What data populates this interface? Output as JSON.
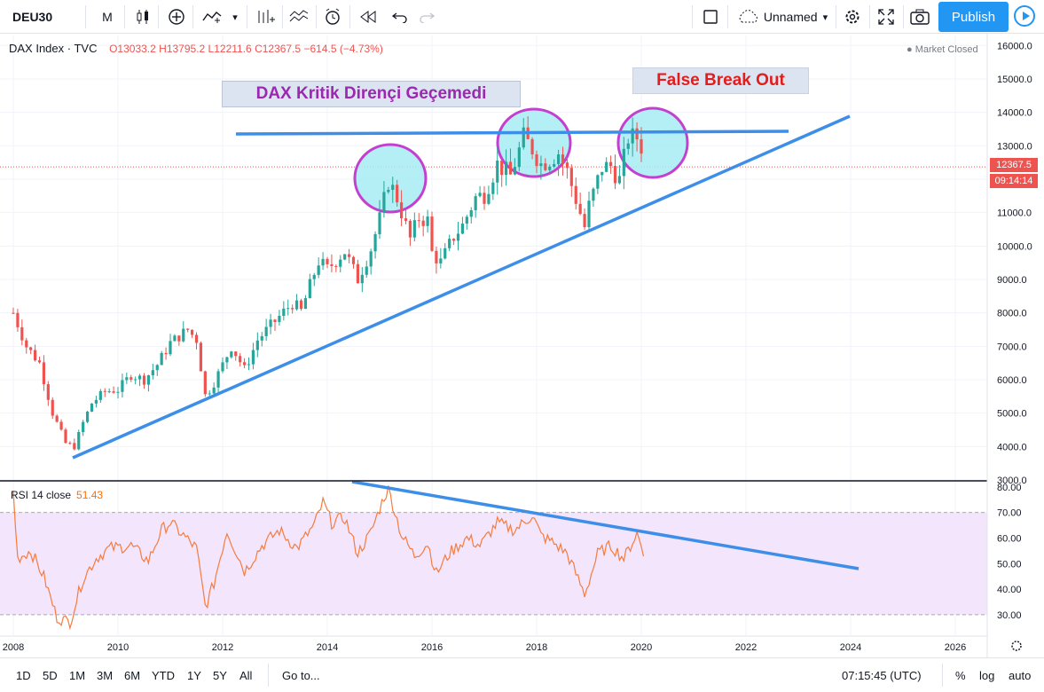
{
  "toolbar": {
    "symbol": "DEU30",
    "interval": "M",
    "layout_name": "Unnamed",
    "publish_label": "Publish"
  },
  "legend": {
    "name": "DAX Index · TVC",
    "open": "O13033.2",
    "high": "H13795.2",
    "low": "L12211.6",
    "close": "C12367.5",
    "change": "−614.5 (−4.73%)"
  },
  "market_status": "● Market Closed",
  "price_tag": {
    "price": "12367.5",
    "countdown": "09:14:14"
  },
  "rsi": {
    "label": "RSI 14 close",
    "value": "51.43"
  },
  "annotations": {
    "resistance_note": "DAX Kritik Dirençi Geçemedi",
    "breakout_note": "False Break Out"
  },
  "bottom": {
    "ranges": [
      "1D",
      "5D",
      "1M",
      "3M",
      "6M",
      "YTD",
      "1Y",
      "5Y",
      "All"
    ],
    "goto": "Go to...",
    "clock": "07:15:45 (UTC)",
    "percent": "%",
    "log": "log",
    "auto": "auto"
  },
  "colors": {
    "up": "#26a69a",
    "down": "#ef5350",
    "trendline": "#3c8ee8",
    "rsi": "#f57c3f",
    "rsi_band": "#f3e5fb",
    "circle_fill": "#a6ecf3",
    "circle_stroke": "#c43fd0"
  },
  "chart_data": {
    "type": "candlestick",
    "interval": "monthly",
    "price_axis": {
      "ylim": [
        3000,
        16300
      ],
      "ticks": [
        3000,
        4000,
        5000,
        6000,
        7000,
        8000,
        9000,
        10000,
        11000,
        12000,
        13000,
        14000,
        15000,
        16000
      ]
    },
    "time_axis": {
      "xlim": [
        2008.0,
        2027.2
      ],
      "ticks": [
        "2008",
        "2010",
        "2012",
        "2014",
        "2016",
        "2018",
        "2020",
        "2022",
        "2024",
        "2026"
      ]
    },
    "last_price": 12367.5,
    "closes": [
      [
        2008.0,
        8000
      ],
      [
        2008.25,
        7000
      ],
      [
        2008.5,
        6500
      ],
      [
        2008.75,
        5000
      ],
      [
        2009.0,
        4100
      ],
      [
        2009.17,
        4000
      ],
      [
        2009.33,
        4700
      ],
      [
        2009.5,
        5300
      ],
      [
        2009.75,
        5650
      ],
      [
        2010.0,
        5700
      ],
      [
        2010.25,
        6150
      ],
      [
        2010.5,
        6000
      ],
      [
        2010.75,
        6450
      ],
      [
        2011.0,
        7100
      ],
      [
        2011.33,
        7500
      ],
      [
        2011.5,
        7200
      ],
      [
        2011.67,
        5500
      ],
      [
        2011.83,
        5900
      ],
      [
        2012.0,
        6450
      ],
      [
        2012.17,
        7000
      ],
      [
        2012.42,
        6300
      ],
      [
        2012.67,
        7200
      ],
      [
        2013.0,
        7750
      ],
      [
        2013.33,
        8300
      ],
      [
        2013.5,
        8050
      ],
      [
        2013.83,
        9550
      ],
      [
        2014.0,
        9300
      ],
      [
        2014.33,
        9850
      ],
      [
        2014.58,
        9000
      ],
      [
        2014.83,
        9900
      ],
      [
        2015.0,
        10800
      ],
      [
        2015.17,
        11950
      ],
      [
        2015.33,
        11450
      ],
      [
        2015.58,
        10200
      ],
      [
        2015.75,
        10850
      ],
      [
        2015.92,
        10750
      ],
      [
        2016.0,
        9800
      ],
      [
        2016.17,
        9500
      ],
      [
        2016.42,
        10300
      ],
      [
        2016.58,
        10600
      ],
      [
        2016.83,
        11450
      ],
      [
        2017.0,
        11550
      ],
      [
        2017.25,
        12450
      ],
      [
        2017.5,
        12100
      ],
      [
        2017.75,
        13250
      ],
      [
        2017.92,
        12900
      ],
      [
        2018.08,
        12450
      ],
      [
        2018.25,
        12600
      ],
      [
        2018.42,
        12800
      ],
      [
        2018.58,
        12250
      ],
      [
        2018.75,
        11400
      ],
      [
        2018.92,
        10550
      ],
      [
        2019.0,
        11200
      ],
      [
        2019.25,
        12350
      ],
      [
        2019.42,
        12400
      ],
      [
        2019.58,
        11950
      ],
      [
        2019.75,
        13250
      ],
      [
        2019.92,
        13250
      ],
      [
        2020.0,
        12980
      ],
      [
        2020.08,
        12367.5
      ]
    ],
    "series": [
      {
        "name": "RSI 14 close",
        "ylim": [
          22,
          82
        ],
        "ticks": [
          30,
          40,
          50,
          60,
          70,
          80
        ],
        "band": [
          30,
          70
        ],
        "values": [
          [
            2008.0,
            78
          ],
          [
            2008.08,
            52
          ],
          [
            2008.33,
            55
          ],
          [
            2008.58,
            45
          ],
          [
            2008.83,
            29
          ],
          [
            2009.08,
            27
          ],
          [
            2009.33,
            44
          ],
          [
            2009.58,
            52
          ],
          [
            2009.83,
            56
          ],
          [
            2010.25,
            57
          ],
          [
            2010.58,
            51
          ],
          [
            2010.83,
            63
          ],
          [
            2011.0,
            66
          ],
          [
            2011.25,
            61
          ],
          [
            2011.5,
            56
          ],
          [
            2011.67,
            33
          ],
          [
            2011.83,
            42
          ],
          [
            2012.08,
            63
          ],
          [
            2012.42,
            47
          ],
          [
            2012.75,
            57
          ],
          [
            2013.08,
            63
          ],
          [
            2013.42,
            56
          ],
          [
            2013.75,
            65
          ],
          [
            2013.92,
            74
          ],
          [
            2014.08,
            66
          ],
          [
            2014.33,
            68
          ],
          [
            2014.58,
            54
          ],
          [
            2014.83,
            62
          ],
          [
            2015.08,
            76
          ],
          [
            2015.17,
            79
          ],
          [
            2015.42,
            61
          ],
          [
            2015.67,
            53
          ],
          [
            2015.92,
            58
          ],
          [
            2016.08,
            46
          ],
          [
            2016.33,
            54
          ],
          [
            2016.67,
            60
          ],
          [
            2016.92,
            57
          ],
          [
            2017.25,
            66
          ],
          [
            2017.58,
            63
          ],
          [
            2017.92,
            69
          ],
          [
            2018.08,
            61
          ],
          [
            2018.33,
            58
          ],
          [
            2018.58,
            54
          ],
          [
            2018.92,
            38
          ],
          [
            2019.17,
            54
          ],
          [
            2019.42,
            57
          ],
          [
            2019.67,
            52
          ],
          [
            2019.92,
            62
          ],
          [
            2020.08,
            51.43
          ]
        ]
      }
    ]
  }
}
